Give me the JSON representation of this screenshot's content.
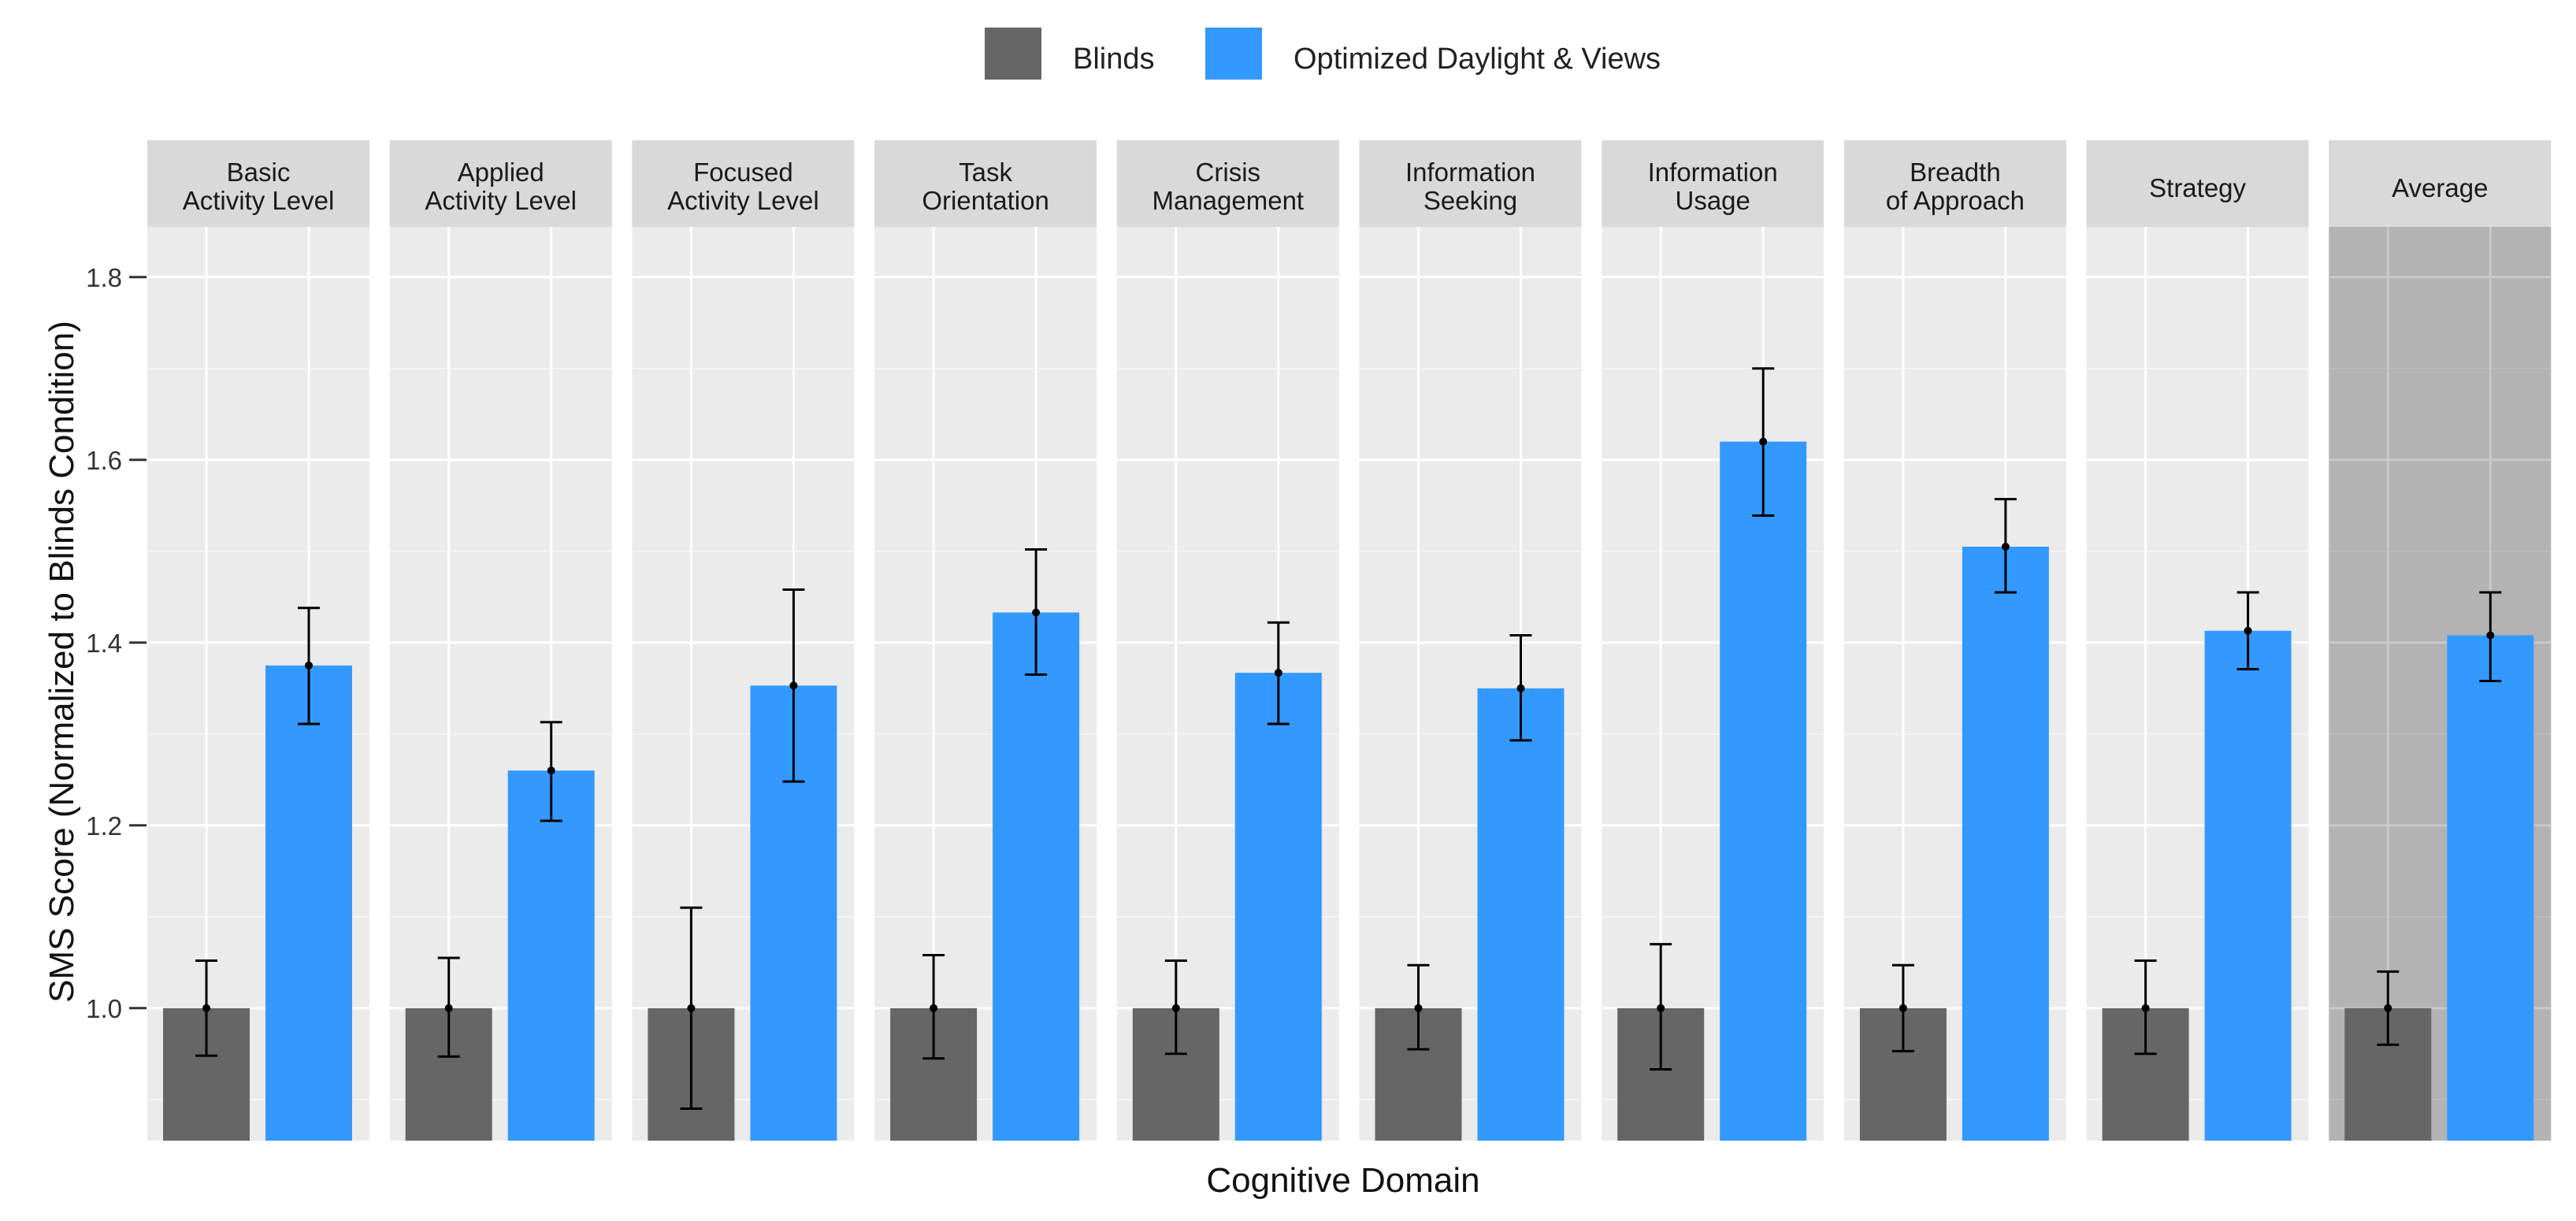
{
  "chart_data": {
    "type": "bar",
    "title": "",
    "xlabel": "Cognitive Domain",
    "ylabel": "SMS Score (Normalized to Blinds Condition)",
    "ylim": [
      0.855,
      1.855
    ],
    "yticks": [
      "1.0",
      "1.2",
      "1.4",
      "1.6",
      "1.8"
    ],
    "grid": true,
    "legend_position": "top",
    "highlighted_panel": "Average",
    "series": [
      {
        "name": "Blinds",
        "color": "#666666"
      },
      {
        "name": "Optimized Daylight & Views",
        "color": "#3399ff"
      }
    ],
    "panels": [
      {
        "label_lines": [
          "Basic",
          "Activity Level"
        ],
        "values": [
          1.0,
          1.375
        ],
        "err_low": [
          0.948,
          1.311
        ],
        "err_high": [
          1.052,
          1.438
        ]
      },
      {
        "label_lines": [
          "Applied",
          "Activity Level"
        ],
        "values": [
          1.0,
          1.26
        ],
        "err_low": [
          0.947,
          1.205
        ],
        "err_high": [
          1.055,
          1.313
        ]
      },
      {
        "label_lines": [
          "Focused",
          "Activity Level"
        ],
        "values": [
          1.0,
          1.353
        ],
        "err_low": [
          0.89,
          1.248
        ],
        "err_high": [
          1.11,
          1.458
        ]
      },
      {
        "label_lines": [
          "Task",
          "Orientation"
        ],
        "values": [
          1.0,
          1.433
        ],
        "err_low": [
          0.945,
          1.365
        ],
        "err_high": [
          1.058,
          1.502
        ]
      },
      {
        "label_lines": [
          "Crisis",
          "Management"
        ],
        "values": [
          1.0,
          1.367
        ],
        "err_low": [
          0.95,
          1.311
        ],
        "err_high": [
          1.052,
          1.422
        ]
      },
      {
        "label_lines": [
          "Information",
          "Seeking"
        ],
        "values": [
          1.0,
          1.35
        ],
        "err_low": [
          0.955,
          1.293
        ],
        "err_high": [
          1.047,
          1.408
        ]
      },
      {
        "label_lines": [
          "Information",
          "Usage"
        ],
        "values": [
          1.0,
          1.62
        ],
        "err_low": [
          0.933,
          1.539
        ],
        "err_high": [
          1.07,
          1.7
        ]
      },
      {
        "label_lines": [
          "Breadth",
          "of Approach"
        ],
        "values": [
          1.0,
          1.505
        ],
        "err_low": [
          0.953,
          1.455
        ],
        "err_high": [
          1.047,
          1.557
        ]
      },
      {
        "label_lines": [
          "Strategy"
        ],
        "values": [
          1.0,
          1.413
        ],
        "err_low": [
          0.95,
          1.371
        ],
        "err_high": [
          1.052,
          1.455
        ]
      },
      {
        "label_lines": [
          "Average"
        ],
        "values": [
          1.0,
          1.408
        ],
        "err_low": [
          0.96,
          1.358
        ],
        "err_high": [
          1.04,
          1.455
        ]
      }
    ]
  }
}
